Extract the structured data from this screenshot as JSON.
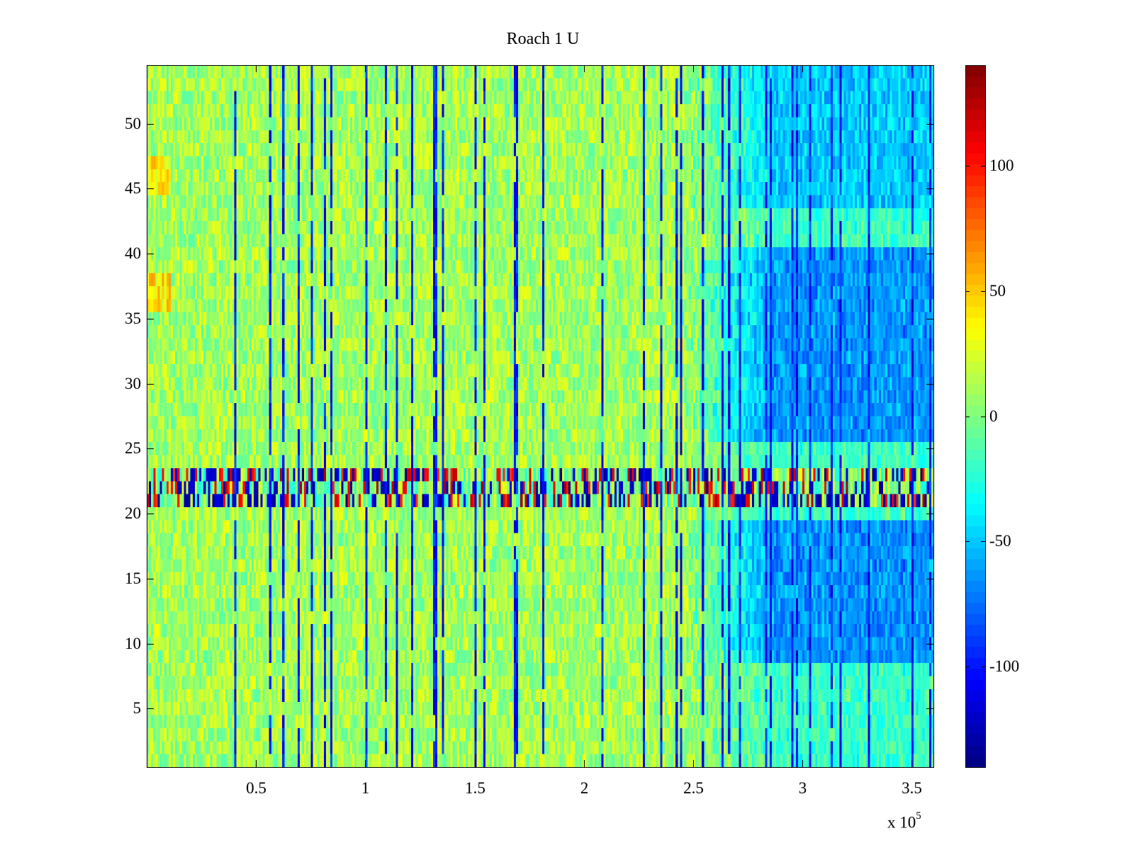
{
  "chart_data": {
    "type": "heatmap",
    "title": "Roach 1 U",
    "xlabel": "",
    "ylabel": "",
    "x_range": [
      0,
      360000
    ],
    "y_range": [
      0.5,
      54.5
    ],
    "x_ticks": [
      50000,
      100000,
      150000,
      200000,
      250000,
      300000,
      350000
    ],
    "x_tick_labels": [
      "0.5",
      "1",
      "1.5",
      "2",
      "2.5",
      "3",
      "3.5"
    ],
    "x_exponent_label": "x 10",
    "x_exponent": "5",
    "y_ticks": [
      5,
      10,
      15,
      20,
      25,
      30,
      35,
      40,
      45,
      50
    ],
    "y_tick_labels": [
      "5",
      "10",
      "15",
      "20",
      "25",
      "30",
      "35",
      "40",
      "45",
      "50"
    ],
    "rows": 54,
    "colormap": "jet",
    "color_limits": [
      -140,
      140
    ],
    "colorbar_ticks": [
      100,
      50,
      0,
      -50,
      -100
    ],
    "colorbar_tick_labels": [
      "100",
      "50",
      "0",
      "-50",
      "-100"
    ],
    "grid": false,
    "pattern_summary": [
      {
        "region": "x 0 to 2.3e5, rows 1-54",
        "typical_value": 10
      },
      {
        "region": "x 2.5e5 to 3.5e5, rows 9-19 and 26-40",
        "typical_value": -60
      },
      {
        "region": "x 2.8e5 to 3.5e5, rows 44-54",
        "typical_value": -45
      },
      {
        "region": "rows 21-23, full width",
        "typical_value": "alternating -130 to 130"
      },
      {
        "region": "x 0 to 1e4, rows 36-38 and 45-47",
        "typical_value": 50
      }
    ]
  }
}
